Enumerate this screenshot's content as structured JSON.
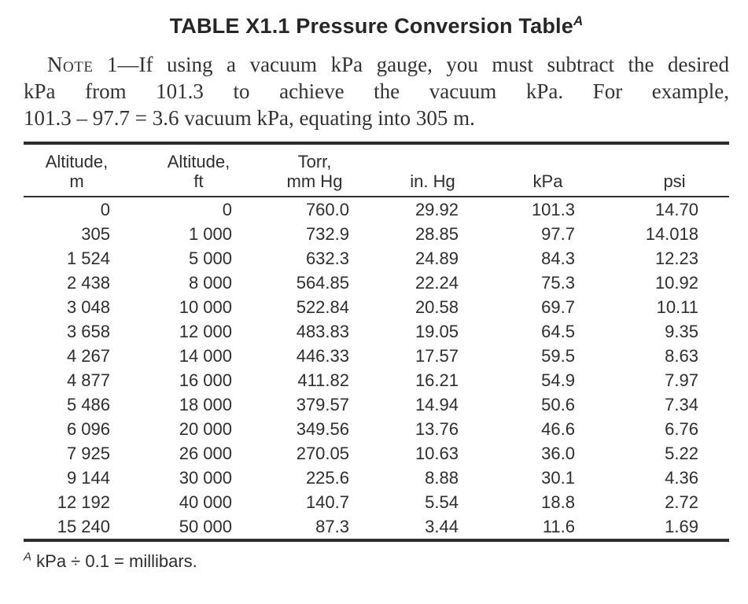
{
  "title": {
    "text": "TABLE X1.1 Pressure Conversion Table",
    "footnote_marker": "A"
  },
  "note": {
    "label": "Note",
    "line1_rest": " 1—If using a vacuum kPa gauge, you must subtract the desired",
    "line2": "kPa from 101.3 to achieve the vacuum kPa. For example,",
    "line3": "101.3 – 97.7 = 3.6 vacuum kPa, equating into 305 m."
  },
  "table": {
    "columns": [
      {
        "line1": "Altitude,",
        "line2": "m"
      },
      {
        "line1": "Altitude,",
        "line2": "ft"
      },
      {
        "line1": "Torr,",
        "line2": "mm Hg"
      },
      {
        "line1": "",
        "line2": "in. Hg"
      },
      {
        "line1": "",
        "line2": "kPa"
      },
      {
        "line1": "",
        "line2": "psi"
      }
    ],
    "rows": [
      [
        "0",
        "0",
        "760.0",
        "29.92",
        "101.3",
        "14.70"
      ],
      [
        "305",
        "1 000",
        "732.9",
        "28.85",
        "97.7",
        "14.018"
      ],
      [
        "1 524",
        "5 000",
        "632.3",
        "24.89",
        "84.3",
        "12.23"
      ],
      [
        "2 438",
        "8 000",
        "564.85",
        "22.24",
        "75.3",
        "10.92"
      ],
      [
        "3 048",
        "10 000",
        "522.84",
        "20.58",
        "69.7",
        "10.11"
      ],
      [
        "3 658",
        "12 000",
        "483.83",
        "19.05",
        "64.5",
        "9.35"
      ],
      [
        "4 267",
        "14 000",
        "446.33",
        "17.57",
        "59.5",
        "8.63"
      ],
      [
        "4 877",
        "16 000",
        "411.82",
        "16.21",
        "54.9",
        "7.97"
      ],
      [
        "5 486",
        "18 000",
        "379.57",
        "14.94",
        "50.6",
        "7.34"
      ],
      [
        "6 096",
        "20 000",
        "349.56",
        "13.76",
        "46.6",
        "6.76"
      ],
      [
        "7 925",
        "26 000",
        "270.05",
        "10.63",
        "36.0",
        "5.22"
      ],
      [
        "9 144",
        "30 000",
        "225.6",
        "8.88",
        "30.1",
        "4.36"
      ],
      [
        "12 192",
        "40 000",
        "140.7",
        "5.54",
        "18.8",
        "2.72"
      ],
      [
        "15 240",
        "50 000",
        "87.3",
        "3.44",
        "11.6",
        "1.69"
      ]
    ]
  },
  "footnote": {
    "marker": "A",
    "text": "kPa ÷ 0.1 = millibars."
  },
  "colors": {
    "text": "#2e2e2e",
    "rule": "#2e2e2e",
    "background": "#ffffff"
  }
}
